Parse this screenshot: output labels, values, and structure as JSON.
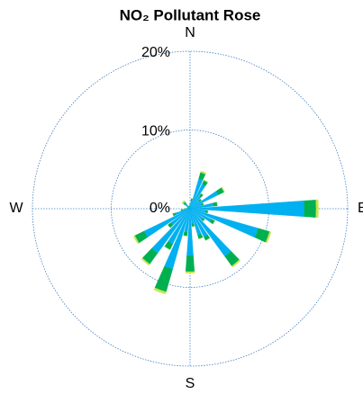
{
  "chart_data": {
    "type": "rose",
    "title": "NO₂ Pollutant Rose",
    "direction_labels": [
      "N",
      "E",
      "S",
      "W"
    ],
    "x": [
      0,
      10,
      20,
      30,
      40,
      50,
      60,
      70,
      80,
      90,
      100,
      110,
      120,
      130,
      140,
      150,
      160,
      170,
      180,
      190,
      200,
      210,
      220,
      230,
      240,
      250,
      260,
      270,
      280,
      290,
      300,
      310,
      320,
      330,
      340,
      350
    ],
    "series": [
      {
        "color": "#00b0f0",
        "values": [
          0.5,
          1,
          4,
          3.5,
          2,
          1.5,
          4,
          1.5,
          3,
          14.5,
          2,
          9,
          3,
          2,
          7.5,
          4,
          3.5,
          2,
          6,
          3,
          8,
          5,
          7,
          3,
          6.5,
          2,
          1,
          0.5,
          0.3,
          0.3,
          0.3,
          0.8,
          0.8,
          0.3,
          0.3,
          0.3
        ]
      },
      {
        "color": "#00b050",
        "values": [
          0.2,
          0.3,
          0.8,
          0.5,
          0.4,
          0.3,
          0.8,
          0.3,
          0.5,
          1.5,
          0.3,
          1.5,
          0.5,
          0.3,
          1.5,
          0.5,
          0.5,
          0.3,
          2,
          0.5,
          3,
          0.8,
          1.7,
          0.5,
          1.3,
          0.3,
          0.2,
          0.1,
          0.1,
          0.1,
          0.1,
          0.3,
          0.3,
          0.1,
          0.1,
          0.1
        ]
      },
      {
        "color": "#c8e650",
        "values": [
          0,
          0,
          0.2,
          0.1,
          0,
          0,
          0.1,
          0,
          0,
          0.3,
          0,
          0.2,
          0,
          0,
          0.2,
          0,
          0,
          0,
          0.2,
          0,
          0.3,
          0,
          0.2,
          0,
          0.2,
          0,
          0,
          0,
          0,
          0,
          0,
          0.2,
          0.2,
          0,
          0,
          0
        ]
      }
    ],
    "ylim": [
      0,
      20
    ],
    "yticks": [
      {
        "value": 0,
        "label": "0%"
      },
      {
        "value": 10,
        "label": "10%"
      },
      {
        "value": 20,
        "label": "20%"
      }
    ],
    "grid": true,
    "grid_color": "#3d7fc4"
  }
}
